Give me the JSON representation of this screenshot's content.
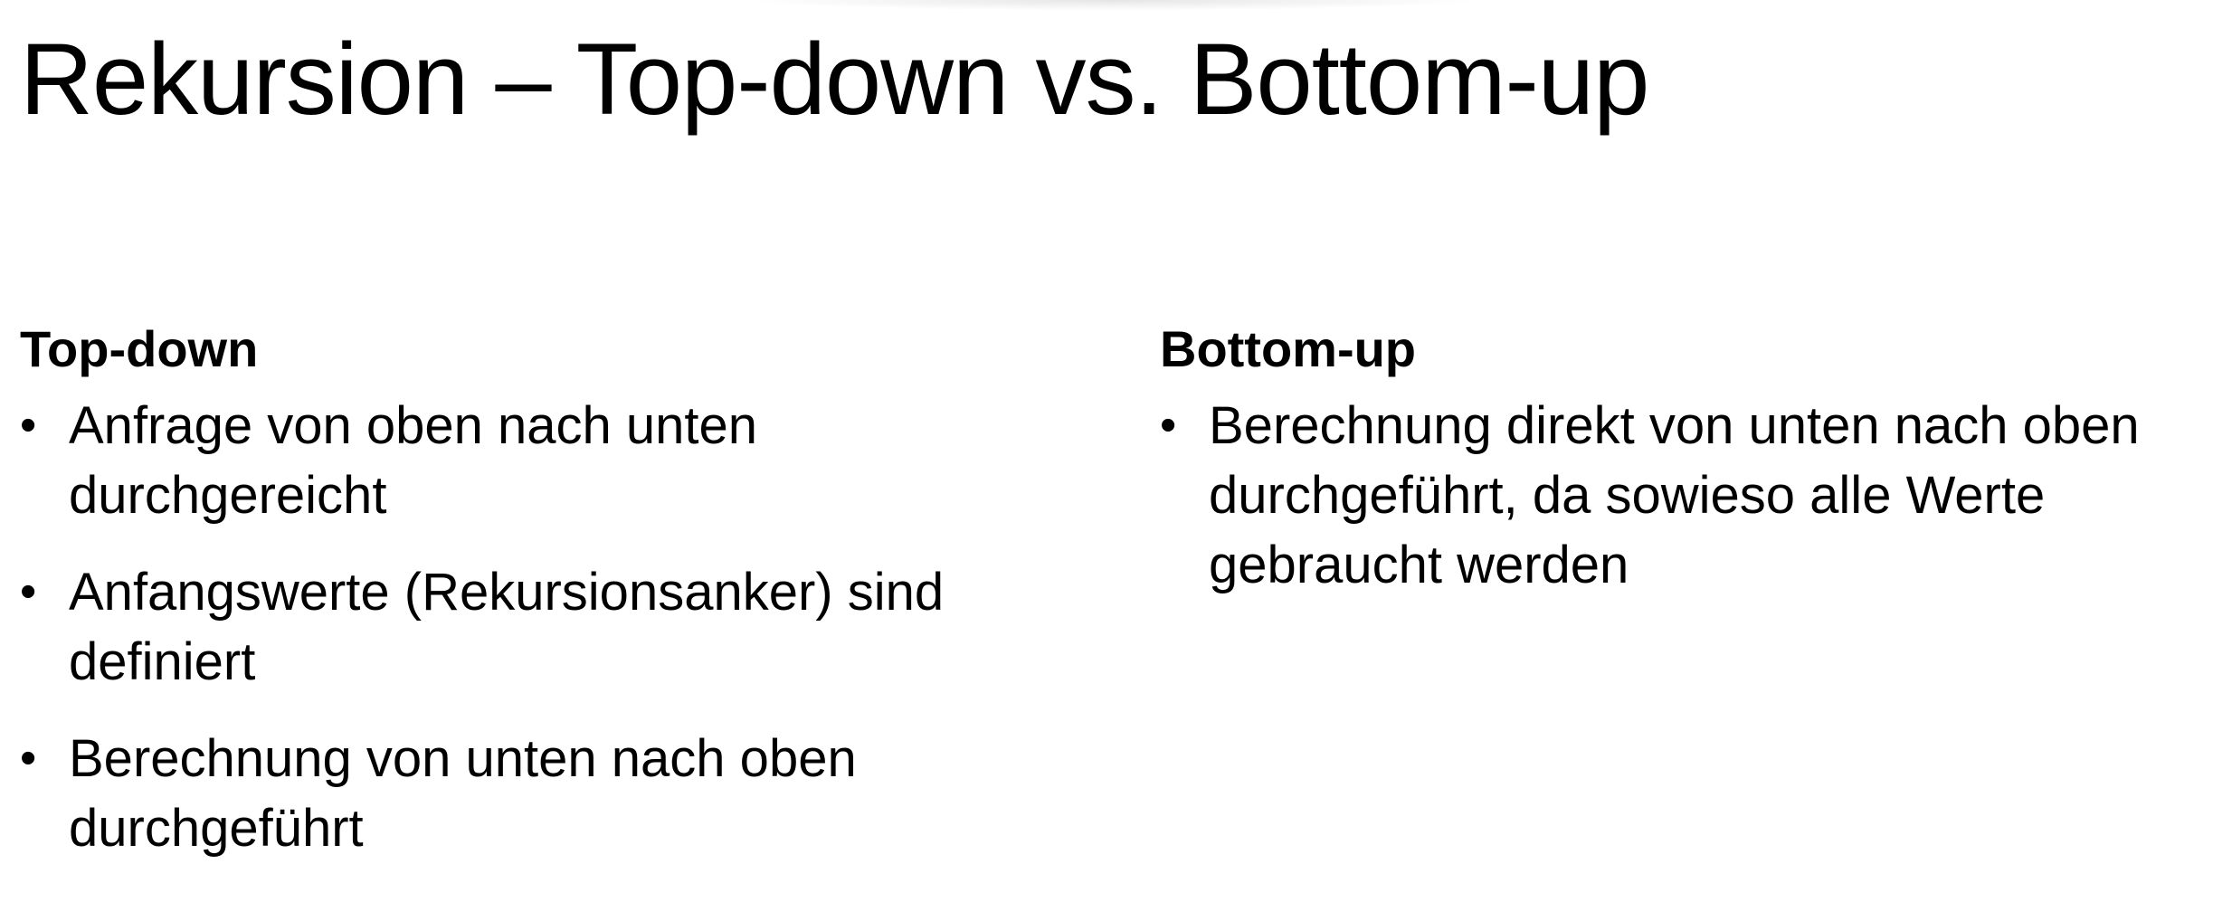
{
  "slide": {
    "title": "Rekursion – Top-down vs. Bottom-up",
    "columns": [
      {
        "heading": "Top-down",
        "bullets": [
          "Anfrage von oben nach unten durchgereicht",
          "Anfangswerte (Rekursionsanker) sind definiert",
          "Berechnung von unten nach oben durchgeführt"
        ]
      },
      {
        "heading": "Bottom-up",
        "bullets": [
          "Berechnung direkt von unten nach oben durchgeführt, da sowieso alle Werte gebraucht werden"
        ]
      }
    ]
  }
}
